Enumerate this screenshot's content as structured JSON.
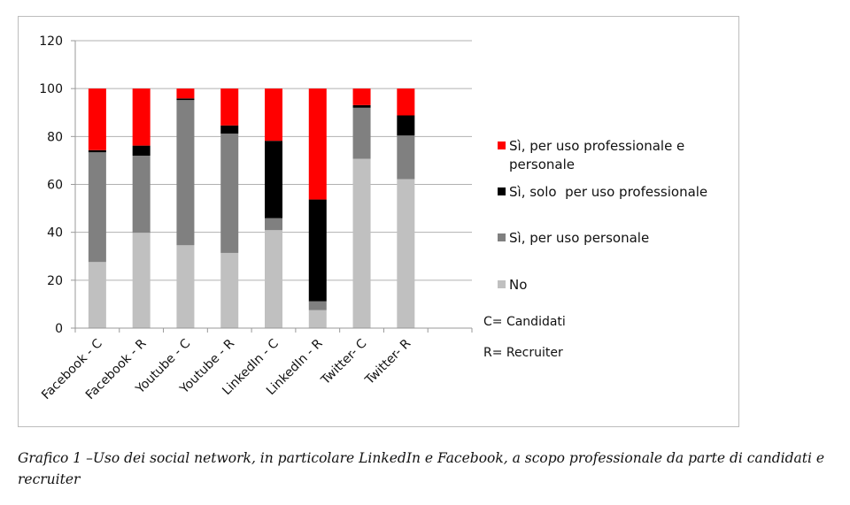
{
  "chart_data": {
    "type": "bar",
    "stacked": true,
    "categories": [
      "Facebook - C",
      "Facebook - R",
      "Youtube - C",
      "Youtube - R",
      "LinkedIn - C",
      "LinkedIn - R",
      "Twitter- C",
      "Twitter- R"
    ],
    "series": [
      {
        "name": "No",
        "color": "#c0c0c0",
        "values": [
          27.6,
          39.8,
          34.6,
          31.4,
          40.9,
          7.5,
          70.7,
          62.2
        ]
      },
      {
        "name": "Sì, per uso personale",
        "color": "#808080",
        "values": [
          45.8,
          32.2,
          60.6,
          49.8,
          5.0,
          3.7,
          21.3,
          18.2
        ]
      },
      {
        "name": "Sì, solo  per uso professionale",
        "color": "#000000",
        "values": [
          0.9,
          4.2,
          0.7,
          3.4,
          32.3,
          42.5,
          1.1,
          8.4
        ]
      },
      {
        "name": "Sì, per uso professionale e personale",
        "color": "#ff0000",
        "values": [
          25.7,
          23.8,
          4.1,
          15.4,
          21.8,
          46.3,
          6.9,
          11.2
        ]
      }
    ],
    "yticks": [
      "0",
      "20",
      "40",
      "60",
      "80",
      "100",
      "120"
    ],
    "ylim": [
      0,
      120
    ],
    "grid": true,
    "legend_position": "right",
    "notes": [
      "C= Candidati",
      "R= Recruiter"
    ]
  },
  "caption": "Grafico 1 –Uso dei social network, in particolare LinkedIn e Facebook, a scopo professionale da parte di candidati e recruiter"
}
